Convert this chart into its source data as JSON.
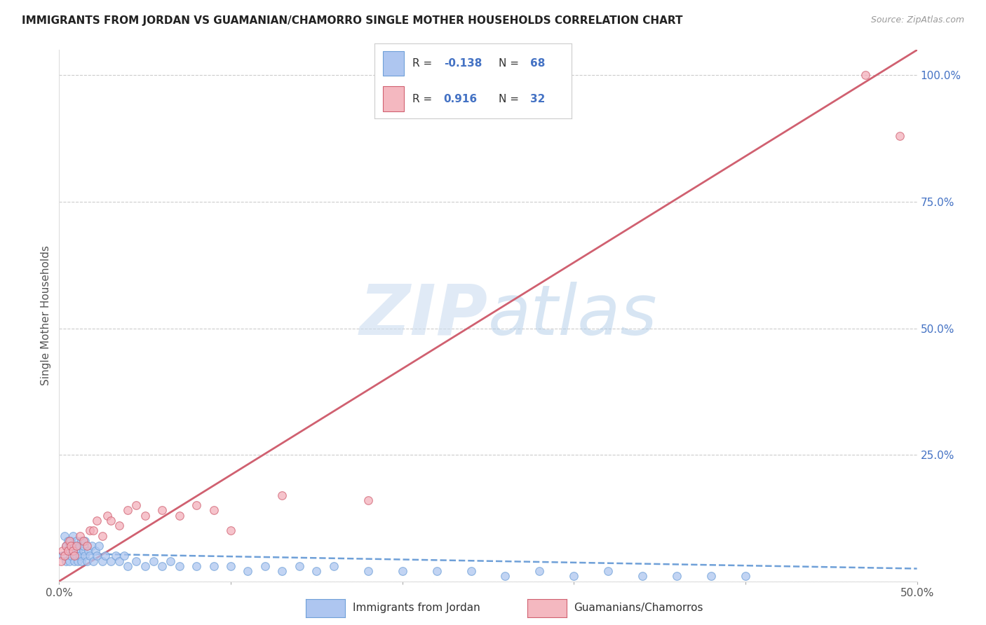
{
  "title": "IMMIGRANTS FROM JORDAN VS GUAMANIAN/CHAMORRO SINGLE MOTHER HOUSEHOLDS CORRELATION CHART",
  "source": "Source: ZipAtlas.com",
  "ylabel": "Single Mother Households",
  "x_min": 0.0,
  "x_max": 0.5,
  "y_min": 0.0,
  "y_max": 1.05,
  "x_ticks": [
    0.0,
    0.1,
    0.2,
    0.3,
    0.4,
    0.5
  ],
  "x_tick_labels": [
    "0.0%",
    "",
    "",
    "",
    "",
    "50.0%"
  ],
  "y_ticks_right": [
    0.0,
    0.25,
    0.5,
    0.75,
    1.0
  ],
  "y_tick_labels_right": [
    "",
    "25.0%",
    "50.0%",
    "75.0%",
    "100.0%"
  ],
  "legend_color1": "#aec6f0",
  "legend_color2": "#f4b8c0",
  "legend_label1": "Immigrants from Jordan",
  "legend_label2": "Guamanians/Chamorros",
  "watermark_zip": "ZIP",
  "watermark_atlas": "atlas",
  "title_color": "#222222",
  "source_color": "#999999",
  "axis_label_color": "#555555",
  "tick_color_right": "#4472c4",
  "tick_color_bottom": "#555555",
  "grid_color": "#cccccc",
  "scatter_jordan_x": [
    0.002,
    0.003,
    0.004,
    0.004,
    0.005,
    0.005,
    0.006,
    0.006,
    0.007,
    0.007,
    0.008,
    0.008,
    0.009,
    0.009,
    0.01,
    0.01,
    0.011,
    0.011,
    0.012,
    0.012,
    0.013,
    0.013,
    0.014,
    0.014,
    0.015,
    0.015,
    0.016,
    0.017,
    0.018,
    0.019,
    0.02,
    0.021,
    0.022,
    0.023,
    0.025,
    0.027,
    0.03,
    0.033,
    0.035,
    0.038,
    0.04,
    0.045,
    0.05,
    0.055,
    0.06,
    0.065,
    0.07,
    0.08,
    0.09,
    0.1,
    0.11,
    0.12,
    0.13,
    0.14,
    0.15,
    0.16,
    0.18,
    0.2,
    0.22,
    0.24,
    0.26,
    0.28,
    0.3,
    0.32,
    0.34,
    0.36,
    0.38,
    0.4
  ],
  "scatter_jordan_y": [
    0.05,
    0.09,
    0.04,
    0.07,
    0.06,
    0.08,
    0.04,
    0.07,
    0.05,
    0.08,
    0.06,
    0.09,
    0.04,
    0.07,
    0.05,
    0.08,
    0.06,
    0.04,
    0.07,
    0.05,
    0.08,
    0.04,
    0.06,
    0.07,
    0.05,
    0.08,
    0.04,
    0.06,
    0.05,
    0.07,
    0.04,
    0.06,
    0.05,
    0.07,
    0.04,
    0.05,
    0.04,
    0.05,
    0.04,
    0.05,
    0.03,
    0.04,
    0.03,
    0.04,
    0.03,
    0.04,
    0.03,
    0.03,
    0.03,
    0.03,
    0.02,
    0.03,
    0.02,
    0.03,
    0.02,
    0.03,
    0.02,
    0.02,
    0.02,
    0.02,
    0.01,
    0.02,
    0.01,
    0.02,
    0.01,
    0.01,
    0.01,
    0.01
  ],
  "scatter_guam_x": [
    0.001,
    0.002,
    0.003,
    0.004,
    0.005,
    0.006,
    0.007,
    0.008,
    0.009,
    0.01,
    0.012,
    0.014,
    0.016,
    0.018,
    0.02,
    0.022,
    0.025,
    0.028,
    0.03,
    0.035,
    0.04,
    0.045,
    0.05,
    0.06,
    0.07,
    0.08,
    0.09,
    0.1,
    0.13,
    0.18,
    0.47,
    0.49
  ],
  "scatter_guam_y": [
    0.04,
    0.06,
    0.05,
    0.07,
    0.06,
    0.08,
    0.07,
    0.06,
    0.05,
    0.07,
    0.09,
    0.08,
    0.07,
    0.1,
    0.1,
    0.12,
    0.09,
    0.13,
    0.12,
    0.11,
    0.14,
    0.15,
    0.13,
    0.14,
    0.13,
    0.15,
    0.14,
    0.1,
    0.17,
    0.16,
    1.0,
    0.88
  ],
  "jordan_line_x": [
    0.0,
    0.5
  ],
  "jordan_line_y": [
    0.055,
    0.025
  ],
  "guam_line_x": [
    0.0,
    0.5
  ],
  "guam_line_y": [
    0.0,
    1.05
  ],
  "jordan_scatter_color": "#aec6f0",
  "jordan_scatter_edge": "#6fa0d8",
  "guam_scatter_color": "#f4b0bc",
  "guam_scatter_edge": "#d06070",
  "jordan_line_color": "#6fa0d8",
  "guam_line_color": "#d06070",
  "scatter_size": 70
}
